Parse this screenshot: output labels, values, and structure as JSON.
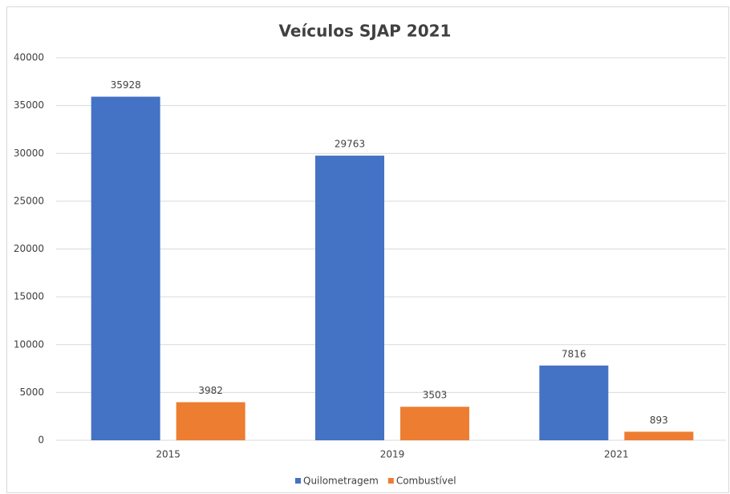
{
  "chart_data": {
    "type": "bar",
    "title": "Veículos SJAP 2021",
    "categories": [
      "2015",
      "2019",
      "2021"
    ],
    "series": [
      {
        "name": "Quilometragem",
        "color": "#4472c4",
        "values": [
          35928,
          29763,
          7816
        ]
      },
      {
        "name": "Combustível",
        "color": "#ed7d31",
        "values": [
          3982,
          3503,
          893
        ]
      }
    ],
    "ylim": [
      0,
      40000
    ],
    "yticks": [
      0,
      5000,
      10000,
      15000,
      20000,
      25000,
      30000,
      35000,
      40000
    ],
    "grid": true,
    "legend": "bottom"
  }
}
